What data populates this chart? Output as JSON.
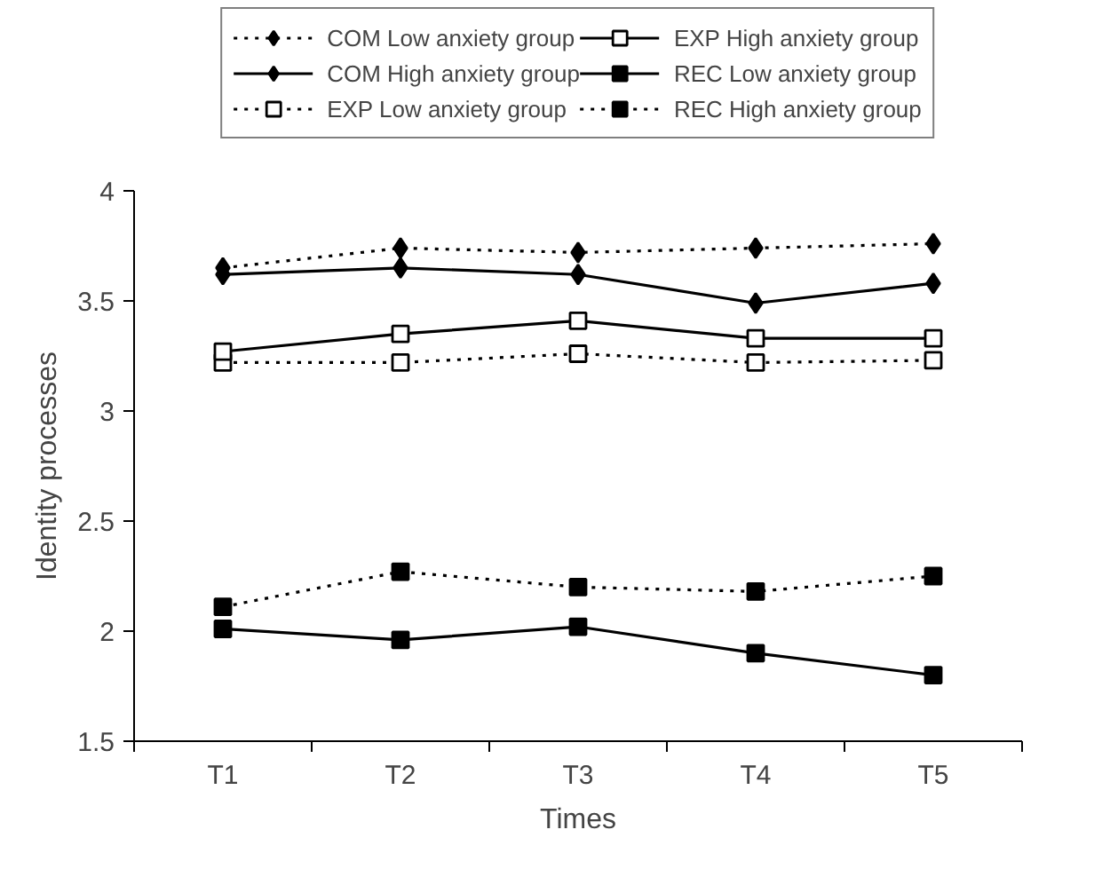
{
  "chart_data": {
    "type": "line",
    "xlabel": "Times",
    "ylabel": "Identity processes",
    "categories": [
      "T1",
      "T2",
      "T3",
      "T4",
      "T5"
    ],
    "ylim": [
      1.5,
      4
    ],
    "yticks": [
      1.5,
      2,
      2.5,
      3,
      3.5,
      4
    ],
    "legend": "top",
    "series": [
      {
        "name": "COM Low anxiety group",
        "color": "#000000",
        "marker": "diamond",
        "line_style": "dotted",
        "values": [
          3.65,
          3.74,
          3.72,
          3.74,
          3.76
        ]
      },
      {
        "name": "COM High anxiety group",
        "color": "#000000",
        "marker": "diamond",
        "line_style": "solid",
        "values": [
          3.62,
          3.65,
          3.62,
          3.49,
          3.58
        ]
      },
      {
        "name": "EXP Low anxiety group",
        "color": "#000000",
        "marker": "square_open",
        "line_style": "dotted",
        "values": [
          3.22,
          3.22,
          3.26,
          3.22,
          3.23
        ]
      },
      {
        "name": "EXP High anxiety group",
        "color": "#000000",
        "marker": "square_open",
        "line_style": "solid",
        "values": [
          3.27,
          3.35,
          3.41,
          3.33,
          3.33
        ]
      },
      {
        "name": "REC Low anxiety group",
        "color": "#000000",
        "marker": "square",
        "line_style": "solid",
        "values": [
          2.01,
          1.96,
          2.02,
          1.9,
          1.8
        ]
      },
      {
        "name": "REC High anxiety group",
        "color": "#000000",
        "marker": "square",
        "line_style": "dotted",
        "values": [
          2.11,
          2.27,
          2.2,
          2.18,
          2.25
        ]
      }
    ]
  }
}
